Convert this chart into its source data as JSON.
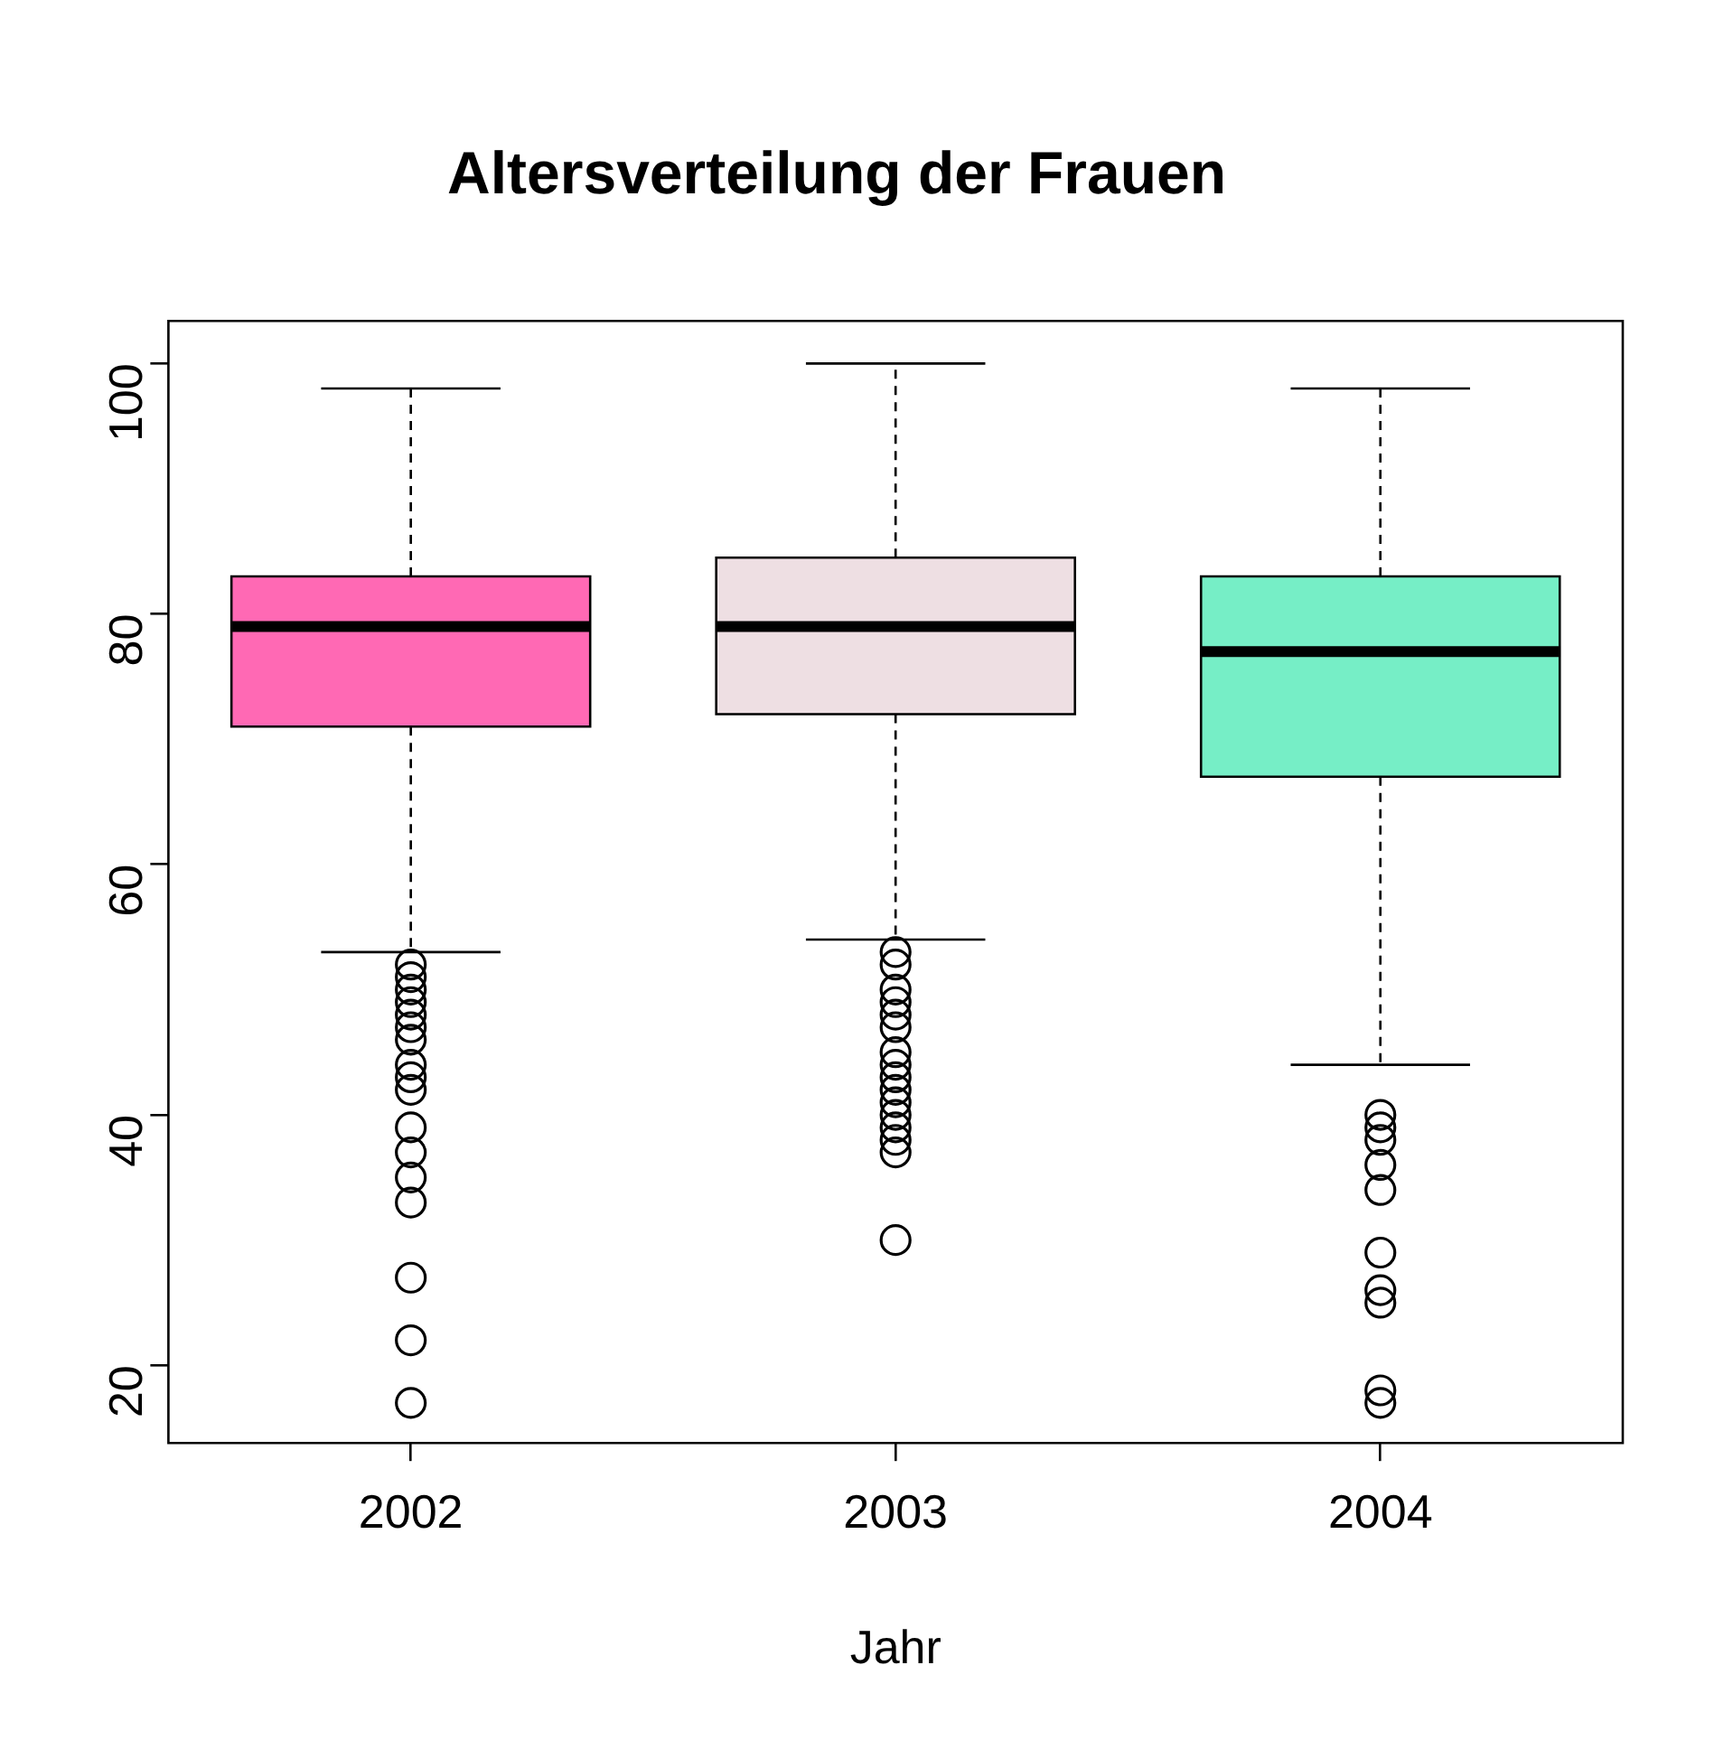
{
  "chart_data": {
    "type": "box",
    "title": "Altersverteilung der Frauen",
    "xlabel": "Jahr",
    "categories": [
      "2002",
      "2003",
      "2004"
    ],
    "colors": [
      "#ff69b4",
      "#eedfe3",
      "#76eec6"
    ],
    "boxes": [
      {
        "low": 53,
        "q1": 71,
        "median": 79,
        "q3": 83,
        "high": 98,
        "outliers": [
          52,
          51,
          50,
          49,
          48,
          47,
          46,
          44,
          43,
          42,
          39,
          37,
          35,
          33,
          27,
          22,
          17
        ]
      },
      {
        "low": 54,
        "q1": 72,
        "median": 79,
        "q3": 84.5,
        "high": 100,
        "outliers": [
          53,
          52,
          50,
          49,
          48,
          47,
          45,
          44,
          43,
          42,
          41,
          40,
          39,
          38,
          37,
          30
        ]
      },
      {
        "low": 44,
        "q1": 67,
        "median": 77,
        "q3": 83,
        "high": 98,
        "outliers": [
          40,
          39,
          38,
          36,
          34,
          29,
          26,
          25,
          18,
          17
        ]
      }
    ],
    "ylim": [
      13.8,
      103.4
    ],
    "yticks": [
      20,
      40,
      60,
      80,
      100
    ],
    "grid": false,
    "legend": false,
    "marker": "circle"
  }
}
